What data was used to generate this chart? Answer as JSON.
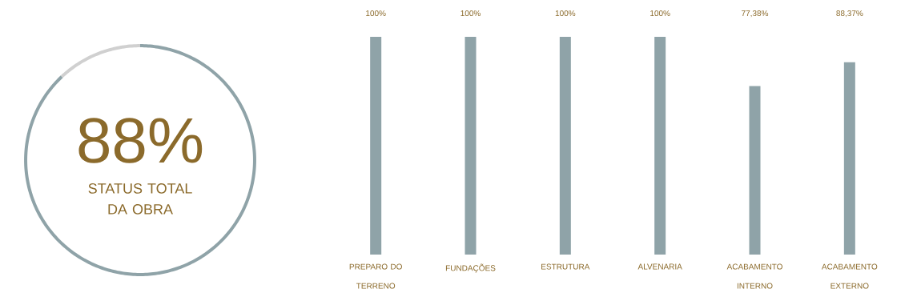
{
  "chart_data": [
    {
      "type": "donut",
      "title": "88%",
      "subtitle": "STATUS TOTAL DA OBRA",
      "categories": [
        null,
        null
      ],
      "values": [
        88,
        12
      ],
      "colors": [
        "#8fa3a8",
        "#d0d0d0"
      ]
    },
    {
      "type": "bar",
      "categories": [
        "PREPARO DO TERRENO",
        "FUNDAÇÕES",
        "ESTRUTURA",
        "ALVENARIA",
        "ACABAMENTO INTERNO",
        "ACABAMENTO EXTERNO"
      ],
      "values": [
        100,
        100,
        100,
        100,
        77.38,
        88.37
      ],
      "color": "#8fa3a8",
      "value_labels": [
        "100%",
        "100%",
        "100%",
        "100%",
        "77,38%",
        "88,37%"
      ]
    }
  ]
}
